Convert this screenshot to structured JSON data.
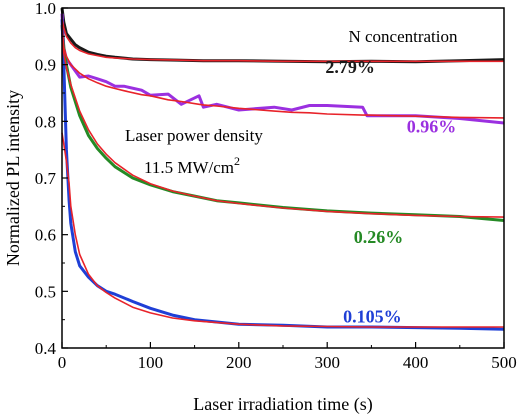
{
  "chart_data": {
    "type": "line",
    "xlabel": "Laser irradiation time (s)",
    "ylabel": "Normalized PL intensity",
    "xlim": [
      0,
      500
    ],
    "ylim": [
      0.4,
      1.0
    ],
    "x_ticks": [
      "0",
      "100",
      "200",
      "300",
      "400",
      "500"
    ],
    "y_ticks": [
      "0.4",
      "0.5",
      "0.6",
      "0.7",
      "0.8",
      "0.9",
      "1.0"
    ],
    "grid": false,
    "legend_title": "N concentration",
    "annotation_line1": "Laser power density",
    "annotation_line2_prefix": "11.5 MW/cm",
    "annotation_line2_sup": "2",
    "fit_color": "#e8232a",
    "series": [
      {
        "name": "2.79%",
        "color": "#1a1a1a",
        "label_x": 298,
        "label_y": 0.885,
        "x": [
          0,
          2,
          5,
          10,
          15,
          20,
          30,
          40,
          50,
          60,
          80,
          100,
          130,
          160,
          200,
          250,
          300,
          350,
          400,
          450,
          500
        ],
        "y": [
          1.0,
          0.975,
          0.955,
          0.945,
          0.935,
          0.93,
          0.922,
          0.918,
          0.915,
          0.913,
          0.91,
          0.909,
          0.908,
          0.907,
          0.907,
          0.906,
          0.905,
          0.906,
          0.905,
          0.907,
          0.909
        ],
        "fit_y": [
          0.98,
          0.965,
          0.95,
          0.938,
          0.93,
          0.925,
          0.919,
          0.916,
          0.913,
          0.912,
          0.91,
          0.909,
          0.908,
          0.907,
          0.907,
          0.906,
          0.906,
          0.906,
          0.906,
          0.906,
          0.906
        ]
      },
      {
        "name": "0.96%",
        "color": "#9b30e0",
        "label_x": 390,
        "label_y": 0.78,
        "x": [
          0,
          2,
          5,
          10,
          20,
          30,
          40,
          50,
          60,
          70,
          90,
          100,
          120,
          135,
          155,
          160,
          175,
          200,
          240,
          260,
          280,
          300,
          340,
          345,
          400,
          450,
          500
        ],
        "y": [
          0.99,
          0.93,
          0.91,
          0.9,
          0.878,
          0.88,
          0.875,
          0.87,
          0.862,
          0.862,
          0.855,
          0.846,
          0.848,
          0.83,
          0.845,
          0.825,
          0.83,
          0.82,
          0.825,
          0.82,
          0.828,
          0.828,
          0.825,
          0.81,
          0.81,
          0.805,
          0.797
        ],
        "fit_y": [
          0.97,
          0.93,
          0.915,
          0.9,
          0.885,
          0.875,
          0.868,
          0.862,
          0.858,
          0.854,
          0.847,
          0.845,
          0.838,
          0.835,
          0.83,
          0.829,
          0.827,
          0.823,
          0.818,
          0.816,
          0.815,
          0.813,
          0.811,
          0.811,
          0.809,
          0.807,
          0.806
        ]
      },
      {
        "name": "0.26%",
        "color": "#258a25",
        "label_x": 330,
        "label_y": 0.585,
        "x": [
          0,
          2,
          5,
          10,
          20,
          30,
          40,
          50,
          60,
          80,
          100,
          125,
          150,
          175,
          200,
          250,
          300,
          350,
          400,
          450,
          500
        ],
        "y": [
          0.97,
          0.93,
          0.9,
          0.86,
          0.81,
          0.775,
          0.752,
          0.735,
          0.72,
          0.7,
          0.688,
          0.676,
          0.668,
          0.66,
          0.656,
          0.648,
          0.642,
          0.638,
          0.635,
          0.632,
          0.625
        ],
        "fit_y": [
          0.95,
          0.92,
          0.895,
          0.865,
          0.818,
          0.785,
          0.76,
          0.742,
          0.727,
          0.705,
          0.69,
          0.677,
          0.668,
          0.66,
          0.655,
          0.647,
          0.641,
          0.637,
          0.634,
          0.632,
          0.631
        ]
      },
      {
        "name": "0.105%",
        "color": "#1f3fd6",
        "label_x": 318,
        "label_y": 0.445,
        "x": [
          0,
          2,
          5,
          8,
          10,
          15,
          20,
          30,
          40,
          50,
          60,
          80,
          100,
          125,
          150,
          200,
          250,
          300,
          350,
          400,
          450,
          500
        ],
        "y": [
          0.98,
          0.9,
          0.75,
          0.66,
          0.62,
          0.57,
          0.545,
          0.525,
          0.51,
          0.5,
          0.495,
          0.482,
          0.47,
          0.458,
          0.45,
          0.442,
          0.44,
          0.437,
          0.437,
          0.436,
          0.435,
          0.433
        ],
        "fit_y": [
          0.78,
          0.76,
          0.73,
          0.69,
          0.65,
          0.6,
          0.565,
          0.53,
          0.51,
          0.498,
          0.488,
          0.472,
          0.462,
          0.453,
          0.448,
          0.442,
          0.439,
          0.438,
          0.437,
          0.437,
          0.437,
          0.437
        ]
      }
    ]
  }
}
